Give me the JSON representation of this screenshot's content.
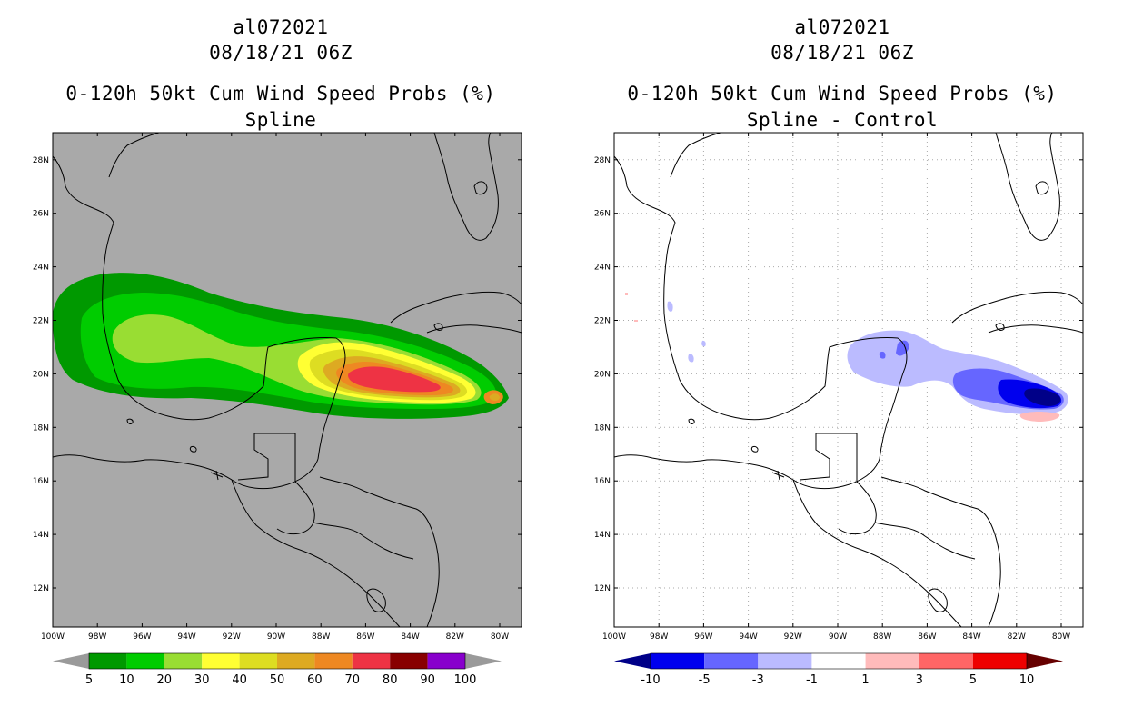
{
  "left": {
    "title1": "al072021",
    "title2": "08/18/21 06Z",
    "title3": "0-120h 50kt Cum Wind Speed Probs (%)",
    "title4": "Spline",
    "background_color": "#a9a9a9",
    "colorbar": {
      "labels": [
        "5",
        "10",
        "20",
        "30",
        "40",
        "50",
        "60",
        "70",
        "80",
        "90",
        "100"
      ],
      "colors": [
        "#009900",
        "#00cc00",
        "#99dd33",
        "#ffff33",
        "#dddd22",
        "#ddaa22",
        "#ee8822",
        "#ee3344",
        "#880000",
        "#8800cc"
      ],
      "over_color": "#9a9a9a",
      "under_color": "#9a9a9a"
    }
  },
  "right": {
    "title1": "al072021",
    "title2": "08/18/21 06Z",
    "title3": "0-120h 50kt Cum Wind Speed Probs (%)",
    "title4": "Spline - Control",
    "background_color": "#ffffff",
    "colorbar": {
      "labels": [
        "-10",
        "-5",
        "-3",
        "-1",
        "1",
        "3",
        "5",
        "10"
      ],
      "colors": [
        "#0000ee",
        "#6666ff",
        "#bbbbff",
        "#ffffff",
        "#ffbbbb",
        "#ff6666",
        "#ee0000"
      ],
      "under_color": "#000088",
      "over_color": "#660000"
    }
  },
  "axes": {
    "lon_labels": [
      "100W",
      "98W",
      "96W",
      "94W",
      "92W",
      "90W",
      "88W",
      "86W",
      "84W",
      "82W",
      "80W"
    ],
    "lat_labels": [
      "12N",
      "14N",
      "16N",
      "18N",
      "20N",
      "22N",
      "24N",
      "26N",
      "28N"
    ]
  }
}
